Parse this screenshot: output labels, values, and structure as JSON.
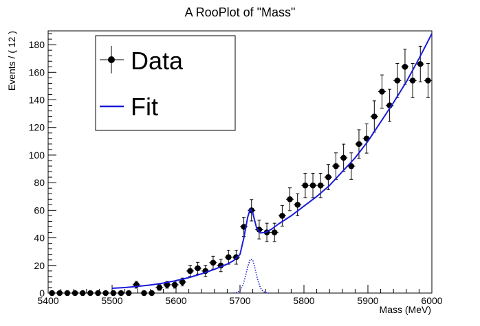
{
  "chart_data": {
    "type": "scatter",
    "title": "A RooPlot of \"Mass\"",
    "xlabel": "Mass (MeV)",
    "ylabel": "Events / ( 12 )",
    "xlim": [
      5400,
      6000
    ],
    "ylim": [
      0,
      190
    ],
    "x_ticks": [
      5400,
      5500,
      5600,
      5700,
      5800,
      5900,
      6000
    ],
    "y_ticks": [
      0,
      20,
      40,
      60,
      80,
      100,
      120,
      140,
      160,
      180
    ],
    "bin_width": 12,
    "legend": {
      "position": "top-left",
      "entries": [
        {
          "label": "Data",
          "style": "points-with-errors",
          "color": "#000000"
        },
        {
          "label": "Fit",
          "style": "line",
          "color": "#1a1adb"
        }
      ]
    },
    "series": [
      {
        "name": "Data",
        "kind": "points",
        "color": "#000000",
        "x": [
          5406,
          5418,
          5430,
          5442,
          5454,
          5466,
          5478,
          5490,
          5502,
          5514,
          5526,
          5538,
          5550,
          5562,
          5574,
          5586,
          5598,
          5610,
          5622,
          5634,
          5646,
          5658,
          5670,
          5682,
          5694,
          5706,
          5718,
          5730,
          5742,
          5754,
          5766,
          5778,
          5790,
          5802,
          5814,
          5826,
          5838,
          5850,
          5862,
          5874,
          5886,
          5898,
          5910,
          5922,
          5934,
          5946,
          5958,
          5970,
          5982,
          5994
        ],
        "y": [
          0,
          0,
          0,
          0,
          0,
          0,
          0,
          0,
          0,
          0,
          0,
          6,
          0,
          0,
          4,
          6,
          6,
          8,
          16,
          18,
          16,
          22,
          20,
          26,
          26,
          48,
          60,
          46,
          44,
          44,
          56,
          68,
          64,
          78,
          78,
          78,
          84,
          92,
          98,
          92,
          108,
          112,
          128,
          146,
          136,
          154,
          164,
          154,
          166,
          154
        ]
      },
      {
        "name": "Fit",
        "kind": "line",
        "color": "#1a1adb",
        "x": [
          5500,
          5520,
          5540,
          5560,
          5580,
          5600,
          5620,
          5640,
          5660,
          5680,
          5690,
          5700,
          5706,
          5712,
          5716,
          5720,
          5726,
          5732,
          5740,
          5750,
          5760,
          5780,
          5800,
          5820,
          5840,
          5860,
          5880,
          5900,
          5920,
          5940,
          5960,
          5980,
          6000
        ],
        "y": [
          3.5,
          4.0,
          4.8,
          5.8,
          7.2,
          9.0,
          11.2,
          14.0,
          17.2,
          21.0,
          23.5,
          28,
          40,
          55,
          61,
          58,
          47,
          43.5,
          44,
          46.5,
          50,
          56,
          63,
          70,
          78,
          88,
          98,
          110,
          124,
          138,
          153,
          170,
          188
        ]
      },
      {
        "name": "",
        "kind": "dotted-line",
        "color": "#1a1adb",
        "x": [
          5690,
          5695,
          5700,
          5704,
          5708,
          5712,
          5716,
          5720,
          5724,
          5728,
          5732,
          5736,
          5740,
          5745
        ],
        "y": [
          0,
          0.4,
          1.8,
          5,
          11,
          19,
          24.5,
          24,
          17,
          9,
          3.8,
          1.2,
          0.3,
          0
        ]
      }
    ]
  }
}
